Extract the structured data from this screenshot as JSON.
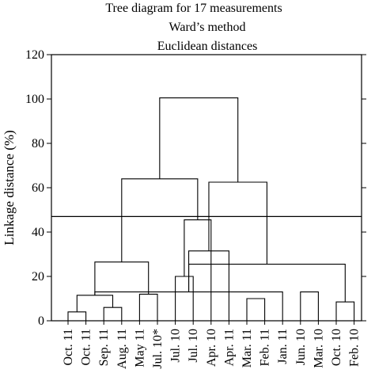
{
  "chart_data": {
    "type": "dendrogram",
    "title_lines": [
      "Tree diagram for 17 measurements",
      "Ward’s method",
      "Euclidean distances"
    ],
    "xlabel": "",
    "ylabel": "Linkage distance (%)",
    "ylim": [
      0,
      120
    ],
    "yticks": [
      0,
      20,
      40,
      60,
      80,
      100,
      120
    ],
    "grid": false,
    "cut_line": 47,
    "leaves": [
      "Oct. 11",
      "Oct. 11",
      "Sep. 11",
      "Aug. 11",
      "May 11",
      "Jul. 10*",
      "Jul. 10",
      "Jul. 10",
      "Apr. 10",
      "Apr. 11",
      "Mar. 11",
      "Feb. 11",
      "Jan. 11",
      "Jun. 10",
      "Mar. 10",
      "Oct. 10",
      "Feb. 10"
    ],
    "merges": [
      {
        "left": 0,
        "right": 1,
        "height": 4
      },
      {
        "left": 2,
        "right": 3,
        "height": 6
      },
      {
        "left": 4,
        "right": 5,
        "height": 12
      },
      {
        "left": 6,
        "right": 7,
        "height": 20
      },
      {
        "left": 10,
        "right": 11,
        "height": 10
      },
      {
        "left": 13,
        "right": 14,
        "height": 13
      },
      {
        "left": 15,
        "right": 16,
        "height": 8.5
      },
      {
        "left": 17,
        "right": 18,
        "height": 11.5
      },
      {
        "left": 24,
        "right": 12,
        "height": 13
      },
      {
        "left": 25,
        "right": 23,
        "height": 25.5
      },
      {
        "left": 20,
        "right": 8,
        "height": 45.5
      },
      {
        "left": 24,
        "right": 19,
        "height": 26.5
      },
      {
        "left": 9,
        "right": 25,
        "height": 31.5
      },
      {
        "left": 28,
        "right": 27,
        "height": 64
      },
      {
        "left": 29,
        "right": 26,
        "height": 62.5
      },
      {
        "left": 30,
        "right": 31,
        "height": 100.5
      }
    ]
  }
}
